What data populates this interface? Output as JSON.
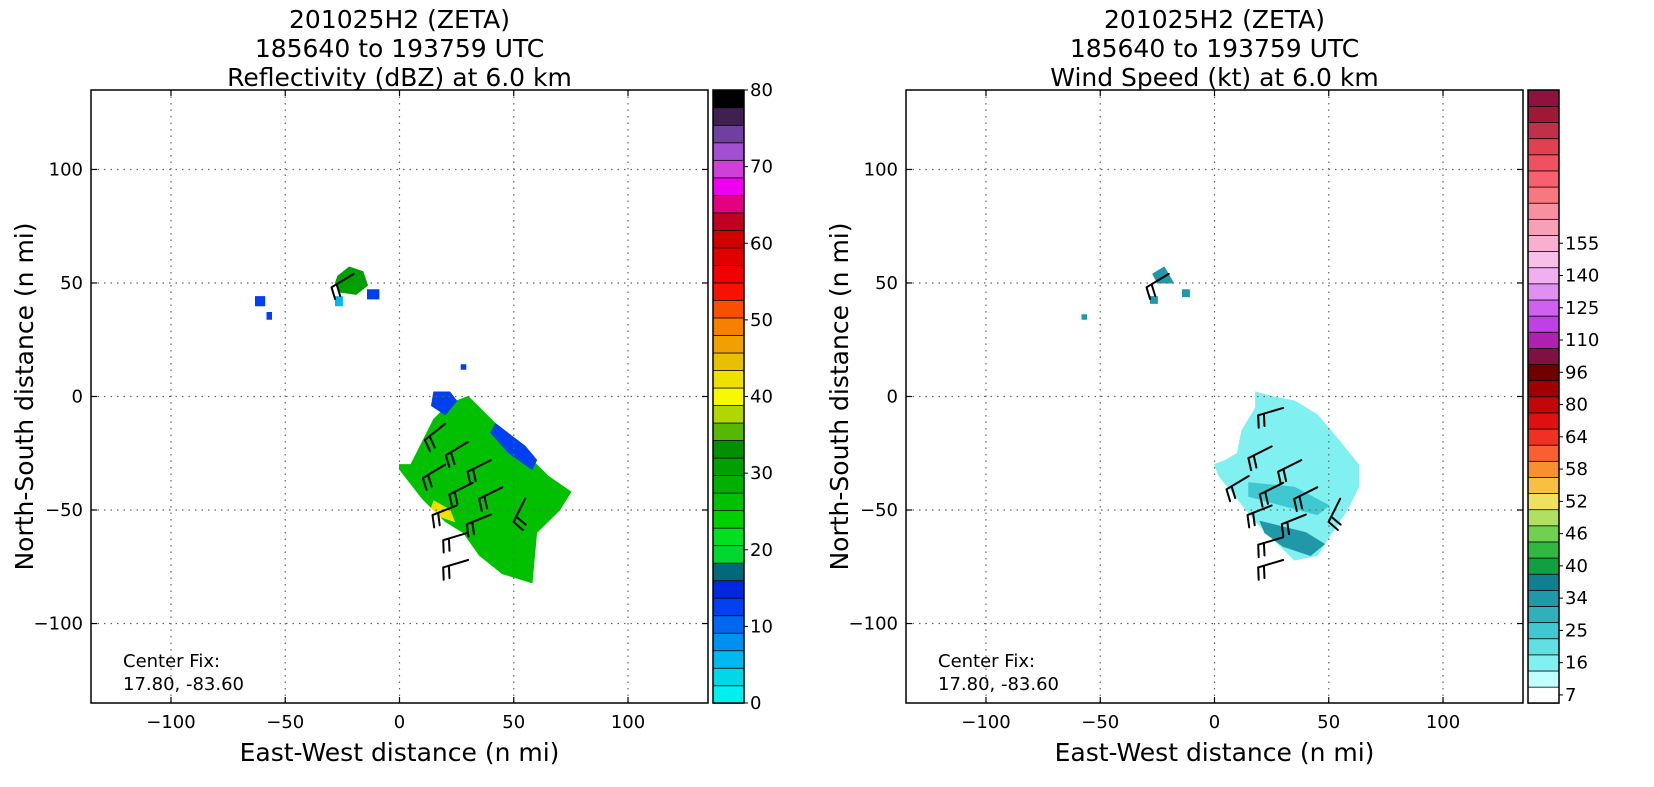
{
  "figure": {
    "center_fix_label": "Center Fix:",
    "center_fix_value": "17.80, -83.60"
  },
  "chart_data": [
    {
      "type": "heatmap",
      "title_lines": [
        "201025H2 (ZETA)",
        "185640 to 193759 UTC",
        "Reflectivity (dBZ) at 6.0 km"
      ],
      "xlabel": "East-West distance (n mi)",
      "ylabel": "North-South distance (n mi)",
      "xlim": [
        -135,
        135
      ],
      "ylim": [
        -135,
        135
      ],
      "xticks": [
        -100,
        -50,
        0,
        50,
        100
      ],
      "yticks": [
        -100,
        -50,
        0,
        50,
        100
      ],
      "grid": true,
      "colorbar": {
        "levels": 32,
        "tick_labels": [
          "0",
          "10",
          "20",
          "30",
          "40",
          "50",
          "60",
          "70",
          "80"
        ],
        "tick_level_index": [
          0,
          4,
          8,
          12,
          16,
          20,
          24,
          28,
          32
        ],
        "colors": [
          "#00f0f0",
          "#00d8e8",
          "#00b8f0",
          "#0090f0",
          "#0068f0",
          "#0040f0",
          "#0028e0",
          "#006878",
          "#00d830",
          "#00e020",
          "#00d000",
          "#00c000",
          "#00b000",
          "#00a000",
          "#009000",
          "#58b800",
          "#b0d800",
          "#f8f800",
          "#f0e000",
          "#e8c000",
          "#f0a000",
          "#f88000",
          "#f85000",
          "#f81000",
          "#f00000",
          "#e00000",
          "#d00000",
          "#c00020",
          "#e00080",
          "#f000f0",
          "#d040d8",
          "#a050d0"
        ],
        "top_colors": [
          "#7040a0",
          "#402050",
          "#000000"
        ]
      },
      "data_regions": [
        {
          "name": "main-echo-polygon",
          "value_class": "green",
          "vertices": [
            [
              0,
              -30
            ],
            [
              5,
              -30
            ],
            [
              15,
              -10
            ],
            [
              20,
              -5
            ],
            [
              25,
              -2
            ],
            [
              30,
              0
            ],
            [
              40,
              -10
            ],
            [
              55,
              -25
            ],
            [
              65,
              -35
            ],
            [
              75,
              -42
            ],
            [
              70,
              -50
            ],
            [
              60,
              -60
            ],
            [
              58,
              -82
            ],
            [
              45,
              -78
            ],
            [
              35,
              -70
            ],
            [
              28,
              -60
            ],
            [
              20,
              -55
            ],
            [
              10,
              -45
            ],
            [
              0,
              -32
            ]
          ]
        },
        {
          "name": "blue-fringe-north",
          "value_class": "blue",
          "vertices": [
            [
              15,
              2
            ],
            [
              22,
              2
            ],
            [
              25,
              -2
            ],
            [
              20,
              -8
            ],
            [
              14,
              -4
            ]
          ]
        },
        {
          "name": "blue-fringe-east",
          "value_class": "blue",
          "vertices": [
            [
              42,
              -12
            ],
            [
              55,
              -22
            ],
            [
              60,
              -28
            ],
            [
              58,
              -32
            ],
            [
              48,
              -25
            ],
            [
              40,
              -16
            ]
          ]
        },
        {
          "name": "yellow-patch",
          "value_class": "yellow",
          "vertices": [
            [
              15,
              -46
            ],
            [
              22,
              -50
            ],
            [
              24,
              -55
            ],
            [
              18,
              -53
            ],
            [
              14,
              -49
            ]
          ]
        },
        {
          "name": "cell-nw",
          "value_class": "green-core",
          "vertices": [
            [
              -27,
              53
            ],
            [
              -22,
              57
            ],
            [
              -16,
              55
            ],
            [
              -14,
              49
            ],
            [
              -19,
              45
            ],
            [
              -26,
              46
            ],
            [
              -28,
              50
            ]
          ]
        },
        {
          "name": "speck-a",
          "value_class": "blue",
          "vertices": [
            [
              -63,
              44
            ],
            [
              -59,
              44
            ],
            [
              -59,
              40
            ],
            [
              -63,
              40
            ]
          ]
        },
        {
          "name": "speck-b",
          "value_class": "blue",
          "vertices": [
            [
              -58,
              37
            ],
            [
              -56,
              37
            ],
            [
              -56,
              34
            ],
            [
              -58,
              34
            ]
          ]
        },
        {
          "name": "speck-c",
          "value_class": "cyan",
          "vertices": [
            [
              -28,
              44
            ],
            [
              -25,
              44
            ],
            [
              -25,
              40
            ],
            [
              -28,
              40
            ]
          ]
        },
        {
          "name": "speck-d",
          "value_class": "blue",
          "vertices": [
            [
              -14,
              47
            ],
            [
              -9,
              47
            ],
            [
              -9,
              43
            ],
            [
              -14,
              43
            ]
          ]
        },
        {
          "name": "speck-e",
          "value_class": "blue",
          "vertices": [
            [
              27,
              14
            ],
            [
              29,
              14
            ],
            [
              29,
              12
            ],
            [
              27,
              12
            ]
          ]
        }
      ],
      "value_class_colors": {
        "green": "#00c000",
        "green-core": "#00a000",
        "blue": "#0040f0",
        "cyan": "#00b8f0",
        "yellow": "#f0e000"
      },
      "wind_barbs": [
        {
          "x": -20,
          "y": 54,
          "u": 1,
          "v": 0.6
        },
        {
          "x": 20,
          "y": -12,
          "u": 1,
          "v": 0.8
        },
        {
          "x": 30,
          "y": -20,
          "u": 1,
          "v": 0.6
        },
        {
          "x": 40,
          "y": -28,
          "u": 1,
          "v": 0.5
        },
        {
          "x": 20,
          "y": -30,
          "u": 1,
          "v": 0.6
        },
        {
          "x": 32,
          "y": -38,
          "u": 1,
          "v": 0.5
        },
        {
          "x": 45,
          "y": -40,
          "u": 1,
          "v": 0.5
        },
        {
          "x": 25,
          "y": -48,
          "u": 1,
          "v": 0.4
        },
        {
          "x": 40,
          "y": -52,
          "u": 1,
          "v": 0.4
        },
        {
          "x": 55,
          "y": -45,
          "u": 0.5,
          "v": 1
        },
        {
          "x": 30,
          "y": -60,
          "u": 1,
          "v": 0.3
        },
        {
          "x": 30,
          "y": -72,
          "u": 1,
          "v": 0.3
        }
      ]
    },
    {
      "type": "heatmap",
      "title_lines": [
        "201025H2 (ZETA)",
        "185640 to 193759 UTC",
        "Wind Speed (kt) at 6.0 km"
      ],
      "xlabel": "East-West distance (n mi)",
      "ylabel": "North-South distance (n mi)",
      "xlim": [
        -135,
        135
      ],
      "ylim": [
        -135,
        135
      ],
      "xticks": [
        -100,
        -50,
        0,
        50,
        100
      ],
      "yticks": [
        -100,
        -50,
        0,
        50,
        100
      ],
      "grid": true,
      "colorbar": {
        "levels": 29,
        "tick_labels": [
          "7",
          "16",
          "25",
          "34",
          "40",
          "46",
          "52",
          "58",
          "64",
          "80",
          "96",
          "110",
          "125",
          "140",
          "155"
        ],
        "tick_level_index": [
          0,
          2,
          4,
          6,
          8,
          10,
          12,
          14,
          16,
          18,
          20,
          22,
          24,
          26,
          28
        ],
        "colors": [
          "#ffffff",
          "#c0ffff",
          "#80f0f0",
          "#60e0e0",
          "#40c8d0",
          "#30b0b8",
          "#2098a8",
          "#108090",
          "#10a040",
          "#30b840",
          "#70d050",
          "#b0e060",
          "#f0e060",
          "#f8c040",
          "#f89030",
          "#f86030",
          "#f03020",
          "#e01010",
          "#c00808",
          "#a00000",
          "#700000",
          "#801040",
          "#b020b0",
          "#c040e8",
          "#d060f0",
          "#e090f0",
          "#f0b0f0",
          "#f8c0e8",
          "#f8b0d0"
        ],
        "top_colors": [
          "#f8a0b8",
          "#f890a0",
          "#f87880",
          "#f86070",
          "#f05060",
          "#e04050",
          "#c03048",
          "#a01838",
          "#901040"
        ]
      },
      "data_regions": [
        {
          "name": "main-wind-polygon",
          "value_class": "light-cyan",
          "vertices": [
            [
              5,
              -28
            ],
            [
              10,
              -25
            ],
            [
              12,
              -15
            ],
            [
              18,
              -5
            ],
            [
              18,
              2
            ],
            [
              25,
              0
            ],
            [
              35,
              -2
            ],
            [
              45,
              -8
            ],
            [
              55,
              -20
            ],
            [
              63,
              -30
            ],
            [
              63,
              -40
            ],
            [
              58,
              -50
            ],
            [
              50,
              -62
            ],
            [
              45,
              -70
            ],
            [
              35,
              -72
            ],
            [
              28,
              -65
            ],
            [
              18,
              -55
            ],
            [
              10,
              -45
            ],
            [
              2,
              -35
            ],
            [
              0,
              -30
            ]
          ]
        },
        {
          "name": "darker-band-1",
          "value_class": "mid-cyan",
          "vertices": [
            [
              15,
              -38
            ],
            [
              35,
              -40
            ],
            [
              50,
              -48
            ],
            [
              45,
              -52
            ],
            [
              30,
              -48
            ],
            [
              15,
              -44
            ]
          ]
        },
        {
          "name": "darker-band-2",
          "value_class": "teal",
          "vertices": [
            [
              20,
              -55
            ],
            [
              40,
              -60
            ],
            [
              48,
              -65
            ],
            [
              42,
              -70
            ],
            [
              30,
              -66
            ],
            [
              22,
              -60
            ]
          ]
        },
        {
          "name": "cell-nw",
          "value_class": "teal",
          "vertices": [
            [
              -27,
              54
            ],
            [
              -22,
              57
            ],
            -16,
            55,
            [
              -18,
              50
            ],
            [
              -25,
              50
            ]
          ]
        },
        {
          "name": "speck-a",
          "value_class": "teal",
          "vertices": [
            [
              -58,
              36
            ],
            [
              -56,
              36
            ],
            [
              -56,
              34
            ],
            [
              -58,
              34
            ]
          ]
        },
        {
          "name": "speck-b",
          "value_class": "teal",
          "vertices": [
            [
              -28,
              44
            ],
            [
              -25,
              44
            ],
            [
              -25,
              41
            ],
            [
              -28,
              41
            ]
          ]
        },
        {
          "name": "speck-c",
          "value_class": "teal",
          "vertices": [
            [
              -14,
              47
            ],
            [
              -11,
              47
            ],
            [
              -11,
              44
            ],
            [
              -14,
              44
            ]
          ]
        }
      ],
      "value_class_colors": {
        "light-cyan": "#80f0f0",
        "mid-cyan": "#40c8d0",
        "teal": "#2098a8"
      },
      "wind_barbs": [
        {
          "x": -20,
          "y": 54,
          "u": 1,
          "v": 0.6
        },
        {
          "x": 30,
          "y": -5,
          "u": 1,
          "v": 0.3
        },
        {
          "x": 25,
          "y": -22,
          "u": 1,
          "v": 0.5
        },
        {
          "x": 38,
          "y": -28,
          "u": 1,
          "v": 0.5
        },
        {
          "x": 15,
          "y": -35,
          "u": 1,
          "v": 0.6
        },
        {
          "x": 30,
          "y": -38,
          "u": 1,
          "v": 0.5
        },
        {
          "x": 45,
          "y": -40,
          "u": 1,
          "v": 0.5
        },
        {
          "x": 25,
          "y": -48,
          "u": 1,
          "v": 0.4
        },
        {
          "x": 40,
          "y": -52,
          "u": 1,
          "v": 0.4
        },
        {
          "x": 55,
          "y": -45,
          "u": 0.5,
          "v": 1
        },
        {
          "x": 30,
          "y": -62,
          "u": 1,
          "v": 0.3
        },
        {
          "x": 30,
          "y": -72,
          "u": 1,
          "v": 0.3
        }
      ]
    }
  ]
}
